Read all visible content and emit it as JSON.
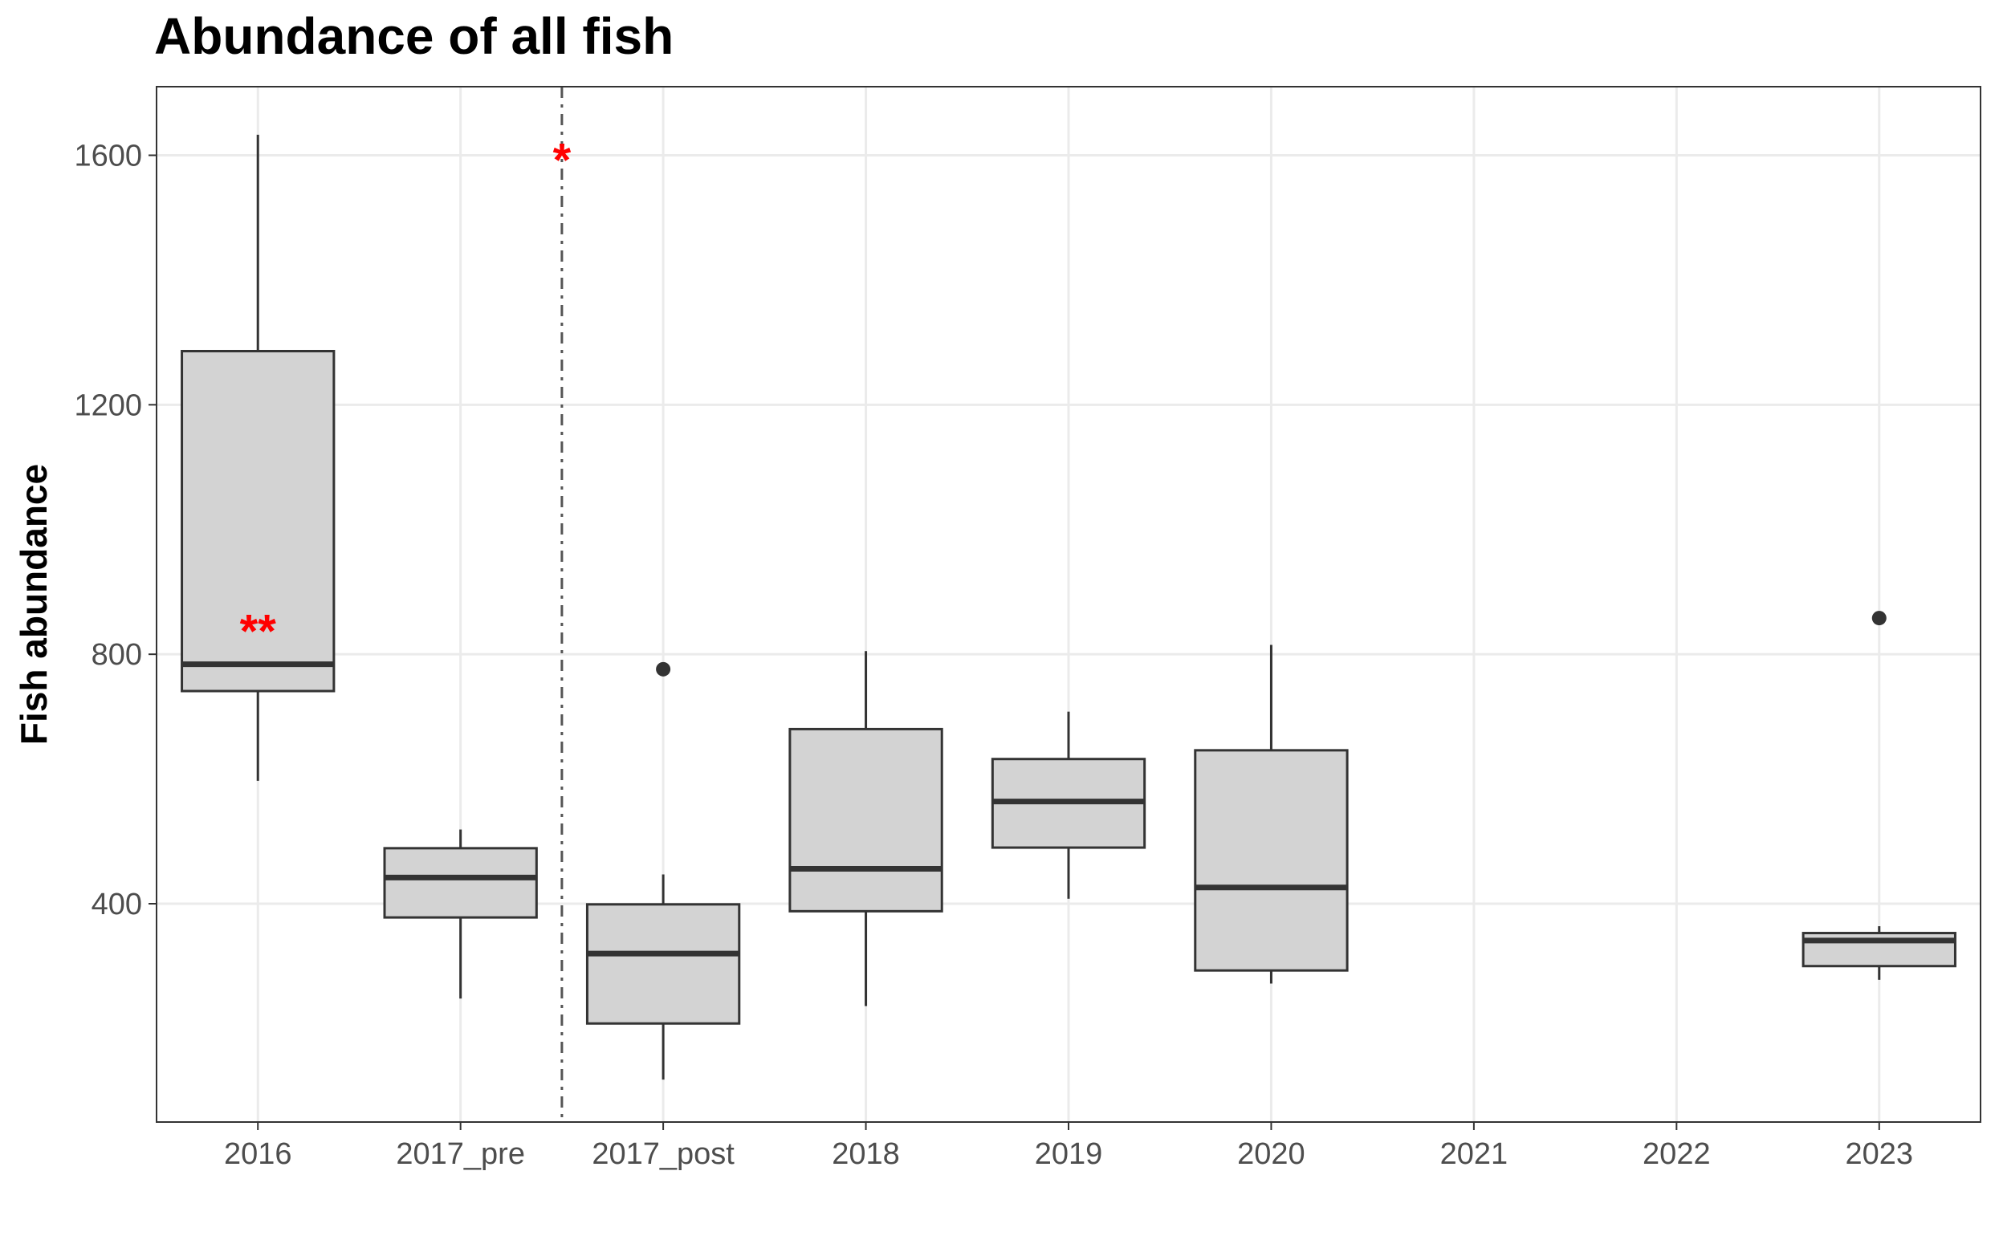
{
  "chart_data": {
    "type": "box",
    "title": "Abundance of all fish",
    "xlabel": "",
    "ylabel": "Fish abundance",
    "categories": [
      "2016",
      "2017_pre",
      "2017_post",
      "2018",
      "2019",
      "2020",
      "2021",
      "2022",
      "2023"
    ],
    "yticks": [
      400,
      800,
      1200,
      1600
    ],
    "ylim": [
      50,
      1710
    ],
    "grid": true,
    "box_fill": "#d3d3d3",
    "box_stroke": "#333333",
    "annotation_color": "#ff0000",
    "boxes": [
      {
        "category": "2016",
        "whisker_low": 597,
        "q1": 741,
        "median": 784,
        "q3": 1286,
        "whisker_high": 1633,
        "outliers": []
      },
      {
        "category": "2017_pre",
        "whisker_low": 248,
        "q1": 378,
        "median": 442,
        "q3": 489,
        "whisker_high": 519,
        "outliers": []
      },
      {
        "category": "2017_post",
        "whisker_low": 118,
        "q1": 208,
        "median": 320,
        "q3": 399,
        "whisker_high": 447,
        "outliers": [
          776
        ]
      },
      {
        "category": "2018",
        "whisker_low": 236,
        "q1": 388,
        "median": 456,
        "q3": 680,
        "whisker_high": 805,
        "outliers": []
      },
      {
        "category": "2019",
        "whisker_low": 408,
        "q1": 490,
        "median": 564,
        "q3": 632,
        "whisker_high": 708,
        "outliers": []
      },
      {
        "category": "2020",
        "whisker_low": 272,
        "q1": 293,
        "median": 426,
        "q3": 646,
        "whisker_high": 815,
        "outliers": []
      },
      {
        "category": "2023",
        "whisker_low": 278,
        "q1": 300,
        "median": 341,
        "q3": 353,
        "whisker_high": 364,
        "outliers": [
          858
        ]
      }
    ],
    "reference_line": {
      "between": [
        "2017_pre",
        "2017_post"
      ],
      "style": "dashed",
      "color": "#555555"
    },
    "annotations": [
      {
        "text": "**",
        "category": "2016",
        "y": 850
      },
      {
        "text": "*",
        "at_reference_line": true,
        "y": 1605
      }
    ]
  }
}
